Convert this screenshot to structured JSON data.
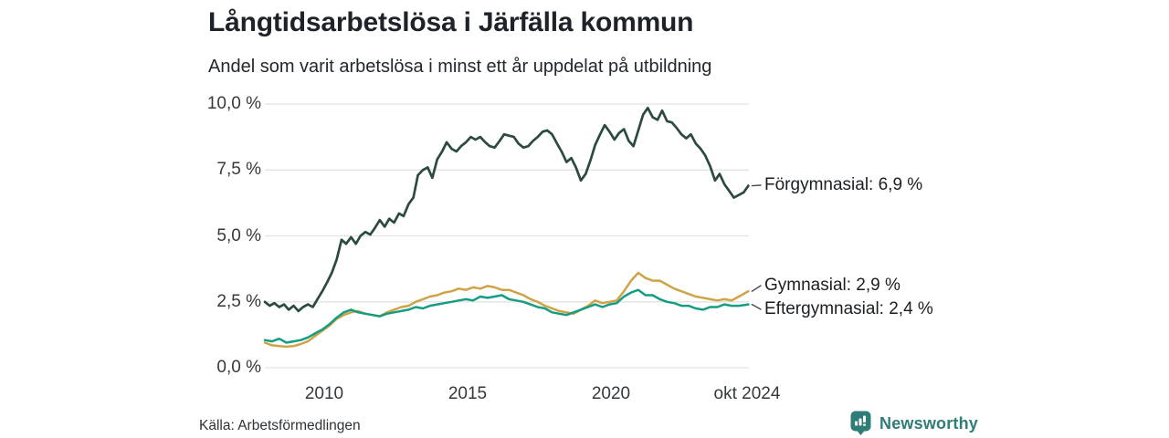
{
  "header": {
    "title": "Långtidsarbetslösa i Järfälla kommun",
    "subtitle": "Andel som varit arbetslösa i minst ett år uppdelat på utbildning"
  },
  "footer": {
    "source": "Källa: Arbetsförmedlingen",
    "brand": "Newsworthy"
  },
  "colors": {
    "forgymnasial": "#2c4a42",
    "gymnasial": "#cfa347",
    "eftergymnasial": "#169c82",
    "gridline": "#e3e3e3",
    "connector": "#4a4a4a",
    "brand_teal": "#2e7d76"
  },
  "chart_data": {
    "type": "line",
    "title": "Långtidsarbetslösa i Järfälla kommun",
    "subtitle": "Andel som varit arbetslösa i minst ett år uppdelat på utbildning",
    "grid": true,
    "legend_position": "end-of-line-labels-right",
    "x_range": [
      2008,
      2024.85
    ],
    "ylim": [
      0,
      10
    ],
    "y_axis": {
      "ticks": [
        {
          "value": 0,
          "label": "0,0 %"
        },
        {
          "value": 2.5,
          "label": "2,5 %"
        },
        {
          "value": 5,
          "label": "5,0 %"
        },
        {
          "value": 7.5,
          "label": "7,5 %"
        },
        {
          "value": 10,
          "label": "10,0 %"
        }
      ]
    },
    "x_axis": {
      "ticks": [
        {
          "year": 2010,
          "label": "2010"
        },
        {
          "year": 2015,
          "label": "2015"
        },
        {
          "year": 2020,
          "label": "2020"
        },
        {
          "year": 2024.79,
          "label": "okt 2024"
        }
      ]
    },
    "series": [
      {
        "name": "Förgymnasial",
        "label": "Förgymnasial: 6,9 %",
        "end_value": 6.9,
        "color": "#2c4a42",
        "stroke_width": 2.7,
        "points": [
          [
            2008.0,
            2.5
          ],
          [
            2008.17,
            2.35
          ],
          [
            2008.33,
            2.45
          ],
          [
            2008.5,
            2.3
          ],
          [
            2008.67,
            2.4
          ],
          [
            2008.83,
            2.2
          ],
          [
            2009.0,
            2.35
          ],
          [
            2009.17,
            2.15
          ],
          [
            2009.33,
            2.3
          ],
          [
            2009.5,
            2.4
          ],
          [
            2009.67,
            2.3
          ],
          [
            2009.83,
            2.6
          ],
          [
            2010.0,
            2.9
          ],
          [
            2010.17,
            3.25
          ],
          [
            2010.33,
            3.6
          ],
          [
            2010.5,
            4.1
          ],
          [
            2010.67,
            4.85
          ],
          [
            2010.83,
            4.7
          ],
          [
            2011.0,
            4.95
          ],
          [
            2011.17,
            4.7
          ],
          [
            2011.33,
            5.0
          ],
          [
            2011.5,
            5.15
          ],
          [
            2011.67,
            5.05
          ],
          [
            2011.83,
            5.3
          ],
          [
            2012.0,
            5.6
          ],
          [
            2012.17,
            5.35
          ],
          [
            2012.33,
            5.65
          ],
          [
            2012.5,
            5.5
          ],
          [
            2012.67,
            5.85
          ],
          [
            2012.83,
            5.75
          ],
          [
            2013.0,
            6.2
          ],
          [
            2013.17,
            6.45
          ],
          [
            2013.33,
            7.3
          ],
          [
            2013.5,
            7.5
          ],
          [
            2013.67,
            7.6
          ],
          [
            2013.83,
            7.2
          ],
          [
            2014.0,
            7.9
          ],
          [
            2014.17,
            8.2
          ],
          [
            2014.33,
            8.55
          ],
          [
            2014.5,
            8.3
          ],
          [
            2014.67,
            8.2
          ],
          [
            2014.83,
            8.4
          ],
          [
            2015.0,
            8.55
          ],
          [
            2015.17,
            8.75
          ],
          [
            2015.33,
            8.65
          ],
          [
            2015.5,
            8.75
          ],
          [
            2015.67,
            8.55
          ],
          [
            2015.83,
            8.4
          ],
          [
            2016.0,
            8.35
          ],
          [
            2016.17,
            8.6
          ],
          [
            2016.33,
            8.85
          ],
          [
            2016.5,
            8.8
          ],
          [
            2016.67,
            8.75
          ],
          [
            2016.83,
            8.5
          ],
          [
            2017.0,
            8.35
          ],
          [
            2017.17,
            8.4
          ],
          [
            2017.33,
            8.6
          ],
          [
            2017.5,
            8.75
          ],
          [
            2017.67,
            8.95
          ],
          [
            2017.83,
            9.0
          ],
          [
            2018.0,
            8.85
          ],
          [
            2018.17,
            8.5
          ],
          [
            2018.33,
            8.2
          ],
          [
            2018.5,
            7.8
          ],
          [
            2018.67,
            7.95
          ],
          [
            2018.83,
            7.6
          ],
          [
            2019.0,
            7.1
          ],
          [
            2019.17,
            7.35
          ],
          [
            2019.33,
            7.85
          ],
          [
            2019.5,
            8.45
          ],
          [
            2019.67,
            8.85
          ],
          [
            2019.83,
            9.2
          ],
          [
            2020.0,
            8.95
          ],
          [
            2020.17,
            8.65
          ],
          [
            2020.33,
            8.9
          ],
          [
            2020.5,
            9.05
          ],
          [
            2020.67,
            8.6
          ],
          [
            2020.83,
            8.4
          ],
          [
            2021.0,
            9.0
          ],
          [
            2021.17,
            9.6
          ],
          [
            2021.33,
            9.85
          ],
          [
            2021.5,
            9.5
          ],
          [
            2021.67,
            9.4
          ],
          [
            2021.83,
            9.75
          ],
          [
            2022.0,
            9.35
          ],
          [
            2022.17,
            9.3
          ],
          [
            2022.33,
            9.1
          ],
          [
            2022.5,
            8.85
          ],
          [
            2022.67,
            8.7
          ],
          [
            2022.83,
            8.85
          ],
          [
            2023.0,
            8.5
          ],
          [
            2023.17,
            8.3
          ],
          [
            2023.33,
            8.05
          ],
          [
            2023.5,
            7.65
          ],
          [
            2023.67,
            7.1
          ],
          [
            2023.83,
            7.35
          ],
          [
            2024.0,
            6.95
          ],
          [
            2024.17,
            6.7
          ],
          [
            2024.33,
            6.45
          ],
          [
            2024.5,
            6.55
          ],
          [
            2024.67,
            6.65
          ],
          [
            2024.83,
            6.9
          ]
        ]
      },
      {
        "name": "Gymnasial",
        "label": "Gymnasial: 2,9 %",
        "end_value": 2.9,
        "color": "#cfa347",
        "stroke_width": 2.5,
        "points": [
          [
            2008.0,
            0.95
          ],
          [
            2008.25,
            0.85
          ],
          [
            2008.5,
            0.82
          ],
          [
            2008.75,
            0.8
          ],
          [
            2009.0,
            0.82
          ],
          [
            2009.25,
            0.9
          ],
          [
            2009.5,
            1.0
          ],
          [
            2009.75,
            1.2
          ],
          [
            2010.0,
            1.4
          ],
          [
            2010.25,
            1.6
          ],
          [
            2010.5,
            1.85
          ],
          [
            2010.75,
            2.0
          ],
          [
            2011.0,
            2.1
          ],
          [
            2011.25,
            2.15
          ],
          [
            2011.5,
            2.05
          ],
          [
            2011.75,
            2.0
          ],
          [
            2012.0,
            1.95
          ],
          [
            2012.25,
            2.1
          ],
          [
            2012.5,
            2.2
          ],
          [
            2012.75,
            2.3
          ],
          [
            2013.0,
            2.35
          ],
          [
            2013.25,
            2.5
          ],
          [
            2013.5,
            2.6
          ],
          [
            2013.75,
            2.7
          ],
          [
            2014.0,
            2.75
          ],
          [
            2014.25,
            2.85
          ],
          [
            2014.5,
            2.9
          ],
          [
            2014.75,
            3.0
          ],
          [
            2015.0,
            2.95
          ],
          [
            2015.25,
            3.05
          ],
          [
            2015.5,
            3.0
          ],
          [
            2015.75,
            3.1
          ],
          [
            2016.0,
            3.05
          ],
          [
            2016.25,
            2.95
          ],
          [
            2016.5,
            2.95
          ],
          [
            2016.75,
            2.85
          ],
          [
            2017.0,
            2.75
          ],
          [
            2017.25,
            2.6
          ],
          [
            2017.5,
            2.5
          ],
          [
            2017.75,
            2.35
          ],
          [
            2018.0,
            2.25
          ],
          [
            2018.25,
            2.15
          ],
          [
            2018.5,
            2.1
          ],
          [
            2018.75,
            2.05
          ],
          [
            2019.0,
            2.2
          ],
          [
            2019.25,
            2.35
          ],
          [
            2019.5,
            2.55
          ],
          [
            2019.75,
            2.45
          ],
          [
            2020.0,
            2.5
          ],
          [
            2020.25,
            2.55
          ],
          [
            2020.5,
            2.9
          ],
          [
            2020.75,
            3.3
          ],
          [
            2021.0,
            3.6
          ],
          [
            2021.25,
            3.4
          ],
          [
            2021.5,
            3.3
          ],
          [
            2021.75,
            3.3
          ],
          [
            2022.0,
            3.15
          ],
          [
            2022.25,
            3.0
          ],
          [
            2022.5,
            2.9
          ],
          [
            2022.75,
            2.8
          ],
          [
            2023.0,
            2.7
          ],
          [
            2023.25,
            2.65
          ],
          [
            2023.5,
            2.6
          ],
          [
            2023.75,
            2.55
          ],
          [
            2024.0,
            2.6
          ],
          [
            2024.25,
            2.55
          ],
          [
            2024.5,
            2.7
          ],
          [
            2024.83,
            2.9
          ]
        ]
      },
      {
        "name": "Eftergymnasial",
        "label": "Eftergymnasial: 2,4 %",
        "end_value": 2.4,
        "color": "#169c82",
        "stroke_width": 2.5,
        "points": [
          [
            2008.0,
            1.05
          ],
          [
            2008.25,
            1.0
          ],
          [
            2008.5,
            1.1
          ],
          [
            2008.75,
            0.95
          ],
          [
            2009.0,
            1.0
          ],
          [
            2009.25,
            1.05
          ],
          [
            2009.5,
            1.15
          ],
          [
            2009.75,
            1.3
          ],
          [
            2010.0,
            1.45
          ],
          [
            2010.25,
            1.65
          ],
          [
            2010.5,
            1.9
          ],
          [
            2010.75,
            2.1
          ],
          [
            2011.0,
            2.2
          ],
          [
            2011.25,
            2.1
          ],
          [
            2011.5,
            2.05
          ],
          [
            2011.75,
            2.0
          ],
          [
            2012.0,
            1.95
          ],
          [
            2012.25,
            2.05
          ],
          [
            2012.5,
            2.1
          ],
          [
            2012.75,
            2.15
          ],
          [
            2013.0,
            2.2
          ],
          [
            2013.25,
            2.3
          ],
          [
            2013.5,
            2.25
          ],
          [
            2013.75,
            2.35
          ],
          [
            2014.0,
            2.4
          ],
          [
            2014.25,
            2.45
          ],
          [
            2014.5,
            2.5
          ],
          [
            2014.75,
            2.55
          ],
          [
            2015.0,
            2.6
          ],
          [
            2015.25,
            2.55
          ],
          [
            2015.5,
            2.7
          ],
          [
            2015.75,
            2.65
          ],
          [
            2016.0,
            2.7
          ],
          [
            2016.25,
            2.75
          ],
          [
            2016.5,
            2.6
          ],
          [
            2016.75,
            2.55
          ],
          [
            2017.0,
            2.5
          ],
          [
            2017.25,
            2.4
          ],
          [
            2017.5,
            2.3
          ],
          [
            2017.75,
            2.25
          ],
          [
            2018.0,
            2.1
          ],
          [
            2018.25,
            2.05
          ],
          [
            2018.5,
            2.0
          ],
          [
            2018.75,
            2.1
          ],
          [
            2019.0,
            2.2
          ],
          [
            2019.25,
            2.3
          ],
          [
            2019.5,
            2.4
          ],
          [
            2019.75,
            2.3
          ],
          [
            2020.0,
            2.4
          ],
          [
            2020.25,
            2.45
          ],
          [
            2020.5,
            2.7
          ],
          [
            2020.75,
            2.85
          ],
          [
            2021.0,
            2.95
          ],
          [
            2021.25,
            2.75
          ],
          [
            2021.5,
            2.75
          ],
          [
            2021.75,
            2.6
          ],
          [
            2022.0,
            2.5
          ],
          [
            2022.25,
            2.45
          ],
          [
            2022.5,
            2.35
          ],
          [
            2022.75,
            2.35
          ],
          [
            2023.0,
            2.25
          ],
          [
            2023.25,
            2.2
          ],
          [
            2023.5,
            2.3
          ],
          [
            2023.75,
            2.3
          ],
          [
            2024.0,
            2.4
          ],
          [
            2024.25,
            2.35
          ],
          [
            2024.5,
            2.35
          ],
          [
            2024.83,
            2.4
          ]
        ]
      }
    ]
  }
}
